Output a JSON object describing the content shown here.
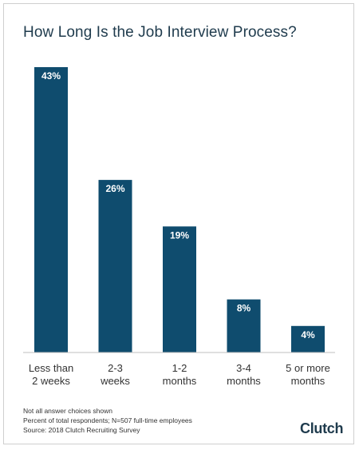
{
  "chart_data": {
    "type": "bar",
    "title": "How Long Is the Job Interview Process?",
    "categories": [
      [
        "Less than",
        "2 weeks"
      ],
      [
        "2-3",
        "weeks"
      ],
      [
        "1-2",
        "months"
      ],
      [
        "3-4",
        "months"
      ],
      [
        "5 or more",
        "months"
      ]
    ],
    "values": [
      43,
      26,
      19,
      8,
      4
    ],
    "value_labels": [
      "43%",
      "26%",
      "19%",
      "8%",
      "4%"
    ],
    "ylim": [
      0,
      43
    ],
    "grid": false,
    "legend": "none",
    "bar_color": "#0f4c6e",
    "label_color": "#ffffff"
  },
  "notes": [
    "Not all answer choices shown",
    "Percent of total respondents; N=507 full-time employees",
    "Source: 2018 Clutch Recruiting Survey"
  ],
  "logo": {
    "text_main": "Clutch",
    "color": "#1f3b4d",
    "accent": "#e8583d"
  }
}
